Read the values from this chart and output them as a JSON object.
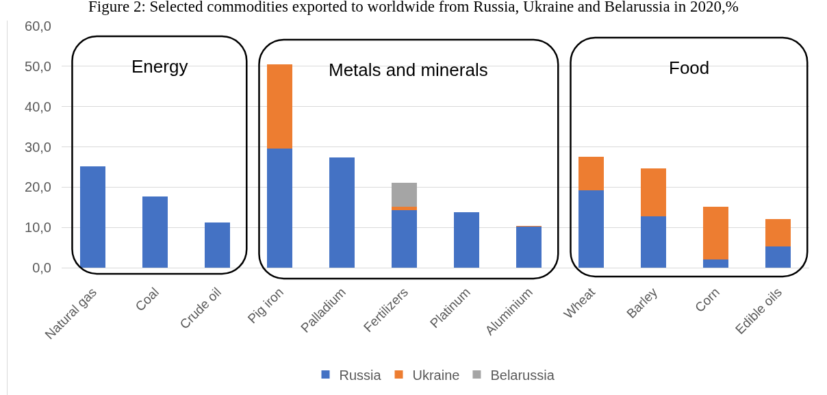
{
  "chart_data": {
    "type": "bar",
    "title": "Figure 2: Selected commodities exported to worldwide from Russia, Ukraine and Belarussia in 2020,%",
    "categories": [
      "Natural gas",
      "Coal",
      "Crude oil",
      "Pig iron",
      "Palladium",
      "Fertilizers",
      "Platinum",
      "Aluminium",
      "Wheat",
      "Barley",
      "Corn",
      "Edible oils"
    ],
    "series": [
      {
        "name": "Russia",
        "color": "#4472c4",
        "values": [
          25.2,
          17.7,
          11.3,
          29.6,
          27.3,
          14.3,
          13.7,
          10.2,
          19.2,
          12.8,
          2.1,
          5.3
        ]
      },
      {
        "name": "Ukraine",
        "color": "#ed7d31",
        "values": [
          null,
          null,
          null,
          20.8,
          null,
          0.8,
          null,
          0.2,
          8.4,
          11.8,
          13.1,
          6.7
        ]
      },
      {
        "name": "Belarussia",
        "color": "#a5a5a5",
        "values": [
          null,
          null,
          null,
          null,
          null,
          6.0,
          null,
          null,
          null,
          null,
          null,
          null
        ]
      }
    ],
    "stacked": true,
    "ylim": [
      0,
      60
    ],
    "yticks": [
      {
        "value": 0,
        "label": "0,0"
      },
      {
        "value": 10,
        "label": "10,0"
      },
      {
        "value": 20,
        "label": "20,0"
      },
      {
        "value": 30,
        "label": "30,0"
      },
      {
        "value": 40,
        "label": "40,0"
      },
      {
        "value": 50,
        "label": "50,0"
      },
      {
        "value": 60,
        "label": "60,0"
      }
    ],
    "grid": "y",
    "legend": "bottom",
    "annotations": [
      "Energy",
      "Metals and minerals",
      "Food"
    ]
  }
}
